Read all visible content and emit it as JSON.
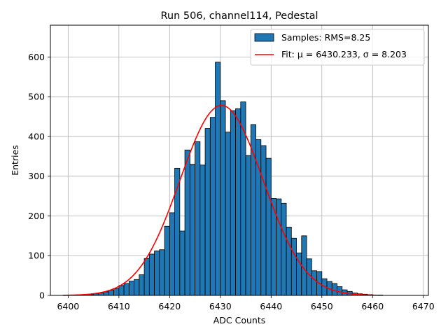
{
  "chart_data": {
    "type": "bar",
    "title": "Run 506, channel114, Pedestal",
    "xlabel": "ADC Counts",
    "ylabel": "Entries",
    "xlim": [
      6396.5,
      6471
    ],
    "ylim": [
      0,
      680
    ],
    "grid": true,
    "legend_position": "top-right",
    "x_ticks": [
      6400,
      6410,
      6420,
      6430,
      6440,
      6450,
      6460,
      6470
    ],
    "y_ticks": [
      0,
      100,
      200,
      300,
      400,
      500,
      600
    ],
    "histogram": {
      "name": "Samples: RMS=8.25",
      "color": "#1f77b4",
      "edge_color": "#000000",
      "bin_edges": [
        6399,
        6400,
        6401,
        6402,
        6403,
        6404,
        6405,
        6406,
        6407,
        6408,
        6409,
        6410,
        6411,
        6412,
        6413,
        6414,
        6415,
        6416,
        6417,
        6418,
        6419,
        6420,
        6421,
        6422,
        6423,
        6424,
        6425,
        6426,
        6427,
        6428,
        6429,
        6430,
        6431,
        6432,
        6433,
        6434,
        6435,
        6436,
        6437,
        6438,
        6439,
        6440,
        6441,
        6442,
        6443,
        6444,
        6445,
        6446,
        6447,
        6448,
        6449,
        6450,
        6451,
        6452,
        6453,
        6454,
        6455,
        6456,
        6457,
        6458,
        6459,
        6460,
        6461,
        6462,
        6463,
        6464,
        6465,
        6466,
        6467
      ],
      "counts": [
        0,
        0,
        0,
        0,
        1,
        2,
        4,
        6,
        9,
        13,
        17,
        25,
        30,
        36,
        40,
        52,
        93,
        104,
        112,
        115,
        174,
        208,
        320,
        162,
        366,
        330,
        387,
        328,
        420,
        448,
        587,
        490,
        411,
        465,
        470,
        487,
        352,
        430,
        392,
        377,
        345,
        244,
        243,
        232,
        172,
        144,
        107,
        150,
        92,
        62,
        60,
        42,
        35,
        30,
        22,
        14,
        10,
        6,
        4,
        3,
        2,
        1,
        1,
        0,
        0,
        0,
        0,
        0
      ]
    },
    "fit": {
      "name": "Fit: μ = 6430.233, σ = 8.203",
      "color": "#ff0000",
      "mu": 6430.233,
      "sigma": 8.203,
      "amplitude": 478,
      "x_range": [
        6399,
        6461
      ]
    }
  }
}
